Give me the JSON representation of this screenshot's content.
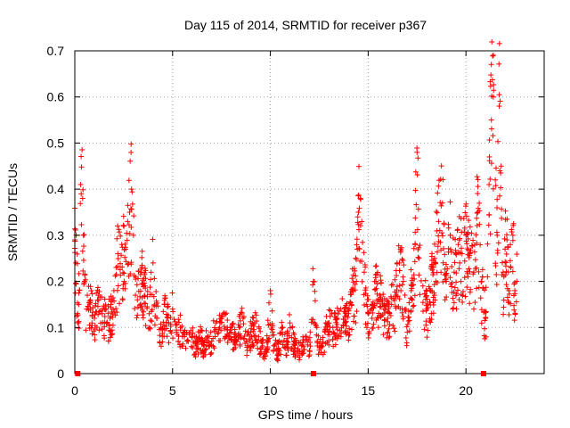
{
  "chart_data": {
    "type": "scatter",
    "title": "Day 115 of 2014, SRMTID for receiver p367",
    "xlabel": "GPS time / hours",
    "ylabel": "SRMTID / TECUs",
    "xlim": [
      0,
      24
    ],
    "ylim": [
      0,
      0.7
    ],
    "xticks": [
      0,
      5,
      10,
      15,
      20
    ],
    "yticks": [
      0,
      0.1,
      0.2,
      0.3,
      0.4,
      0.5,
      0.6,
      0.7
    ],
    "xtick_labels": [
      "0",
      "5",
      "10",
      "15",
      "20"
    ],
    "ytick_labels": [
      "0",
      "0.1",
      "0.2",
      "0.3",
      "0.4",
      "0.5",
      "0.6",
      "0.7"
    ],
    "grid": true,
    "marker": "plus",
    "series_color": "#ff0000",
    "series": [
      {
        "name": "SRMTID",
        "x": [
          0.0,
          0.2,
          0.3,
          0.4,
          0.5,
          0.6,
          0.8,
          1.0,
          1.2,
          1.4,
          1.6,
          1.8,
          2.0,
          2.2,
          2.4,
          2.6,
          2.7,
          2.8,
          2.9,
          3.0,
          3.1,
          3.2,
          3.4,
          3.6,
          3.8,
          4.0,
          4.2,
          4.4,
          4.6,
          4.8,
          5.0,
          5.2,
          5.4,
          5.6,
          5.8,
          6.0,
          6.2,
          6.4,
          6.6,
          6.8,
          7.0,
          7.2,
          7.4,
          7.6,
          7.8,
          8.0,
          8.2,
          8.4,
          8.6,
          8.8,
          9.0,
          9.2,
          9.4,
          9.6,
          9.8,
          10.0,
          10.2,
          10.4,
          10.6,
          10.8,
          11.0,
          11.2,
          11.4,
          11.6,
          11.8,
          12.0,
          12.2,
          12.4,
          12.6,
          12.8,
          13.0,
          13.2,
          13.4,
          13.6,
          13.8,
          14.0,
          14.2,
          14.4,
          14.5,
          14.6,
          14.8,
          15.0,
          15.2,
          15.4,
          15.6,
          15.8,
          16.0,
          16.2,
          16.4,
          16.6,
          16.8,
          17.0,
          17.2,
          17.4,
          17.5,
          17.6,
          17.8,
          18.0,
          18.2,
          18.4,
          18.6,
          18.8,
          19.0,
          19.2,
          19.4,
          19.6,
          19.8,
          20.0,
          20.2,
          20.4,
          20.6,
          20.8,
          21.0,
          21.1,
          21.2,
          21.3,
          21.4,
          21.5,
          21.6,
          21.7,
          21.8,
          21.9,
          22.0,
          22.1,
          22.2,
          22.3,
          22.4,
          22.5,
          22.6
        ],
        "y": [
          0.29,
          0.15,
          0.41,
          0.38,
          0.2,
          0.14,
          0.16,
          0.12,
          0.17,
          0.13,
          0.14,
          0.12,
          0.18,
          0.26,
          0.28,
          0.27,
          0.33,
          0.35,
          0.4,
          0.3,
          0.17,
          0.16,
          0.22,
          0.19,
          0.13,
          0.24,
          0.12,
          0.1,
          0.15,
          0.11,
          0.14,
          0.09,
          0.1,
          0.08,
          0.07,
          0.08,
          0.06,
          0.09,
          0.06,
          0.08,
          0.07,
          0.11,
          0.1,
          0.13,
          0.1,
          0.09,
          0.08,
          0.1,
          0.12,
          0.07,
          0.09,
          0.11,
          0.08,
          0.06,
          0.05,
          0.18,
          0.06,
          0.05,
          0.09,
          0.06,
          0.11,
          0.07,
          0.05,
          0.06,
          0.08,
          0.05,
          0.2,
          0.07,
          0.06,
          0.09,
          0.11,
          0.1,
          0.12,
          0.14,
          0.11,
          0.13,
          0.18,
          0.2,
          0.35,
          0.38,
          0.22,
          0.13,
          0.12,
          0.2,
          0.17,
          0.14,
          0.12,
          0.15,
          0.17,
          0.24,
          0.2,
          0.09,
          0.18,
          0.28,
          0.48,
          0.25,
          0.19,
          0.14,
          0.18,
          0.25,
          0.33,
          0.37,
          0.2,
          0.3,
          0.22,
          0.28,
          0.26,
          0.3,
          0.26,
          0.22,
          0.35,
          0.2,
          0.12,
          0.21,
          0.47,
          0.55,
          0.6,
          0.42,
          0.3,
          0.58,
          0.45,
          0.22,
          0.27,
          0.29,
          0.18,
          0.23,
          0.3,
          0.18,
          0.2
        ]
      }
    ],
    "axis_markers": [
      0.15,
      12.2,
      20.9
    ]
  }
}
